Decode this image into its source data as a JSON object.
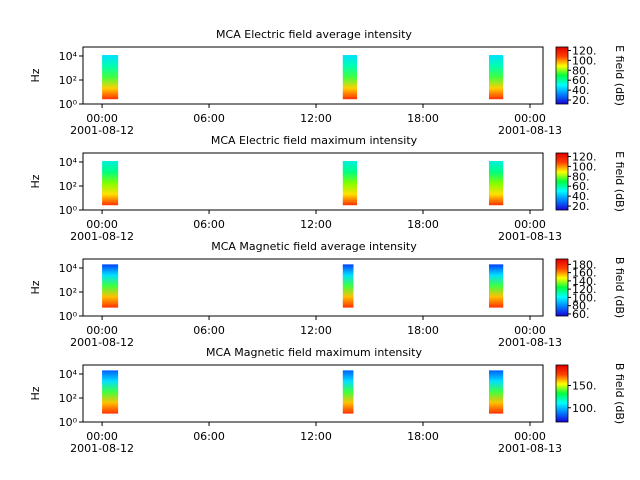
{
  "chart_data": [
    {
      "type": "spectrogram",
      "title": "MCA  Electric field average intensity",
      "ylabel": "Hz",
      "colorbar_label": "E field (dB)",
      "xlim": [
        -1.07,
        24.73
      ],
      "xticks": [
        {
          "value": 0,
          "label": "00:00",
          "date": "2001-08-12"
        },
        {
          "value": 6,
          "label": "06:00"
        },
        {
          "value": 12,
          "label": "12:00"
        },
        {
          "value": 18,
          "label": "18:00"
        },
        {
          "value": 24,
          "label": "00:00",
          "date": "2001-08-13"
        }
      ],
      "ylim": [
        1,
        56000
      ],
      "log_y": true,
      "yticks": [
        {
          "value": 1,
          "label": "10⁰"
        },
        {
          "value": 100,
          "label": "10²"
        },
        {
          "value": 10000,
          "label": "10⁴"
        }
      ],
      "segments": [
        {
          "start": 0.0,
          "end": 0.9,
          "freq_range": [
            2.5,
            12000
          ]
        },
        {
          "start": 13.5,
          "end": 14.3,
          "freq_range": [
            2.5,
            12000
          ]
        },
        {
          "start": 21.7,
          "end": 22.5,
          "freq_range": [
            2.5,
            12000
          ]
        }
      ],
      "clim": [
        12,
        127
      ],
      "cticks": [
        {
          "value": 20,
          "label": "20."
        },
        {
          "value": 40,
          "label": "40."
        },
        {
          "value": 60,
          "label": "60."
        },
        {
          "value": 80,
          "label": "80."
        },
        {
          "value": 100,
          "label": "100."
        },
        {
          "value": 120,
          "label": "120."
        }
      ],
      "colormap": [
        "#1a00d8",
        "#0080ff",
        "#00ffff",
        "#00ff40",
        "#ffff00",
        "#ff4000",
        "#e00000"
      ],
      "block_colors": [
        "#ff3000",
        "#ffd000",
        "#40ff40",
        "#00ffb0",
        "#00e0ff"
      ]
    },
    {
      "type": "spectrogram",
      "title": "MCA  Electric field maximum intensity",
      "ylabel": "Hz",
      "colorbar_label": "E field (dB)",
      "xlim": [
        -1.07,
        24.73
      ],
      "xticks": [
        {
          "value": 0,
          "label": "00:00",
          "date": "2001-08-12"
        },
        {
          "value": 6,
          "label": "06:00"
        },
        {
          "value": 12,
          "label": "12:00"
        },
        {
          "value": 18,
          "label": "18:00"
        },
        {
          "value": 24,
          "label": "00:00",
          "date": "2001-08-13"
        }
      ],
      "ylim": [
        1,
        56000
      ],
      "log_y": true,
      "yticks": [
        {
          "value": 1,
          "label": "10⁰"
        },
        {
          "value": 100,
          "label": "10²"
        },
        {
          "value": 10000,
          "label": "10⁴"
        }
      ],
      "segments": [
        {
          "start": 0.0,
          "end": 0.9,
          "freq_range": [
            2.5,
            12000
          ]
        },
        {
          "start": 13.5,
          "end": 14.3,
          "freq_range": [
            2.5,
            12000
          ]
        },
        {
          "start": 21.7,
          "end": 22.5,
          "freq_range": [
            2.5,
            12000
          ]
        }
      ],
      "clim": [
        12,
        127
      ],
      "cticks": [
        {
          "value": 20,
          "label": "20."
        },
        {
          "value": 40,
          "label": "40."
        },
        {
          "value": 60,
          "label": "60."
        },
        {
          "value": 80,
          "label": "80."
        },
        {
          "value": 100,
          "label": "100."
        },
        {
          "value": 120,
          "label": "120."
        }
      ],
      "colormap": [
        "#1a00d8",
        "#0080ff",
        "#00ffff",
        "#00ff40",
        "#ffff00",
        "#ff4000",
        "#e00000"
      ],
      "block_colors": [
        "#ff3000",
        "#ffe000",
        "#80ff00",
        "#00ff80",
        "#00f0e0"
      ]
    },
    {
      "type": "spectrogram",
      "title": "MCA  Magnetic field average intensity",
      "ylabel": "Hz",
      "colorbar_label": "B field (dB)",
      "xlim": [
        -1.07,
        24.73
      ],
      "xticks": [
        {
          "value": 0,
          "label": "00:00",
          "date": "2001-08-12"
        },
        {
          "value": 6,
          "label": "06:00"
        },
        {
          "value": 12,
          "label": "12:00"
        },
        {
          "value": 18,
          "label": "18:00"
        },
        {
          "value": 24,
          "label": "00:00",
          "date": "2001-08-13"
        }
      ],
      "ylim": [
        1,
        56000
      ],
      "log_y": true,
      "yticks": [
        {
          "value": 1,
          "label": "10⁰"
        },
        {
          "value": 100,
          "label": "10²"
        },
        {
          "value": 10000,
          "label": "10⁴"
        }
      ],
      "segments": [
        {
          "start": 0.0,
          "end": 0.9,
          "freq_range": [
            5,
            20000
          ]
        },
        {
          "start": 13.5,
          "end": 14.1,
          "freq_range": [
            5,
            20000
          ]
        },
        {
          "start": 21.7,
          "end": 22.5,
          "freq_range": [
            5,
            20000
          ]
        }
      ],
      "clim": [
        55,
        193
      ],
      "cticks": [
        {
          "value": 60,
          "label": "60."
        },
        {
          "value": 80,
          "label": "80."
        },
        {
          "value": 100,
          "label": "100."
        },
        {
          "value": 120,
          "label": "120."
        },
        {
          "value": 140,
          "label": "140."
        },
        {
          "value": 160,
          "label": "160."
        },
        {
          "value": 180,
          "label": "180."
        }
      ],
      "colormap": [
        "#1a00d8",
        "#0080ff",
        "#00ffff",
        "#00ff40",
        "#ffff00",
        "#ff4000",
        "#e00000"
      ],
      "block_colors": [
        "#ff3000",
        "#ffc000",
        "#40ff40",
        "#00e0ff",
        "#0040ff"
      ]
    },
    {
      "type": "spectrogram",
      "title": "MCA  Magnetic field maximum intensity",
      "ylabel": "Hz",
      "colorbar_label": "B field (dB)",
      "xlim": [
        -1.07,
        24.73
      ],
      "xticks": [
        {
          "value": 0,
          "label": "00:00",
          "date": "2001-08-12"
        },
        {
          "value": 6,
          "label": "06:00"
        },
        {
          "value": 12,
          "label": "12:00"
        },
        {
          "value": 18,
          "label": "18:00"
        },
        {
          "value": 24,
          "label": "00:00",
          "date": "2001-08-13"
        }
      ],
      "ylim": [
        1,
        56000
      ],
      "log_y": true,
      "yticks": [
        {
          "value": 1,
          "label": "10⁰"
        },
        {
          "value": 100,
          "label": "10²"
        },
        {
          "value": 10000,
          "label": "10⁴"
        }
      ],
      "segments": [
        {
          "start": 0.0,
          "end": 0.9,
          "freq_range": [
            5,
            20000
          ]
        },
        {
          "start": 13.5,
          "end": 14.1,
          "freq_range": [
            5,
            20000
          ]
        },
        {
          "start": 21.7,
          "end": 22.5,
          "freq_range": [
            5,
            20000
          ]
        }
      ],
      "clim": [
        68,
        196
      ],
      "cticks": [
        {
          "value": 100,
          "label": "100."
        },
        {
          "value": 150,
          "label": "150."
        }
      ],
      "colormap": [
        "#1a00d8",
        "#0080ff",
        "#00ffff",
        "#00ff40",
        "#ffff00",
        "#ff4000",
        "#e00000"
      ],
      "block_colors": [
        "#ff3000",
        "#ffc000",
        "#40ff40",
        "#00e0ff",
        "#0060ff"
      ]
    }
  ]
}
